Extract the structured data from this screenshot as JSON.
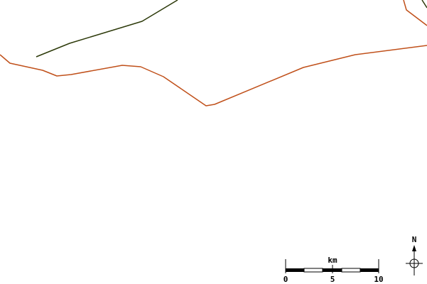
{
  "map": {
    "colors": {
      "background": "#ffffff",
      "orange_route": "#c0501a",
      "dark_route": "#2d3a0a",
      "scale_black": "#000000",
      "scale_white": "#ffffff"
    },
    "scale_bar": {
      "unit": "km",
      "ticks": [
        "0",
        "5",
        "10"
      ]
    },
    "north_arrow": {
      "label": "N",
      "icon": "north-arrow-icon"
    }
  }
}
